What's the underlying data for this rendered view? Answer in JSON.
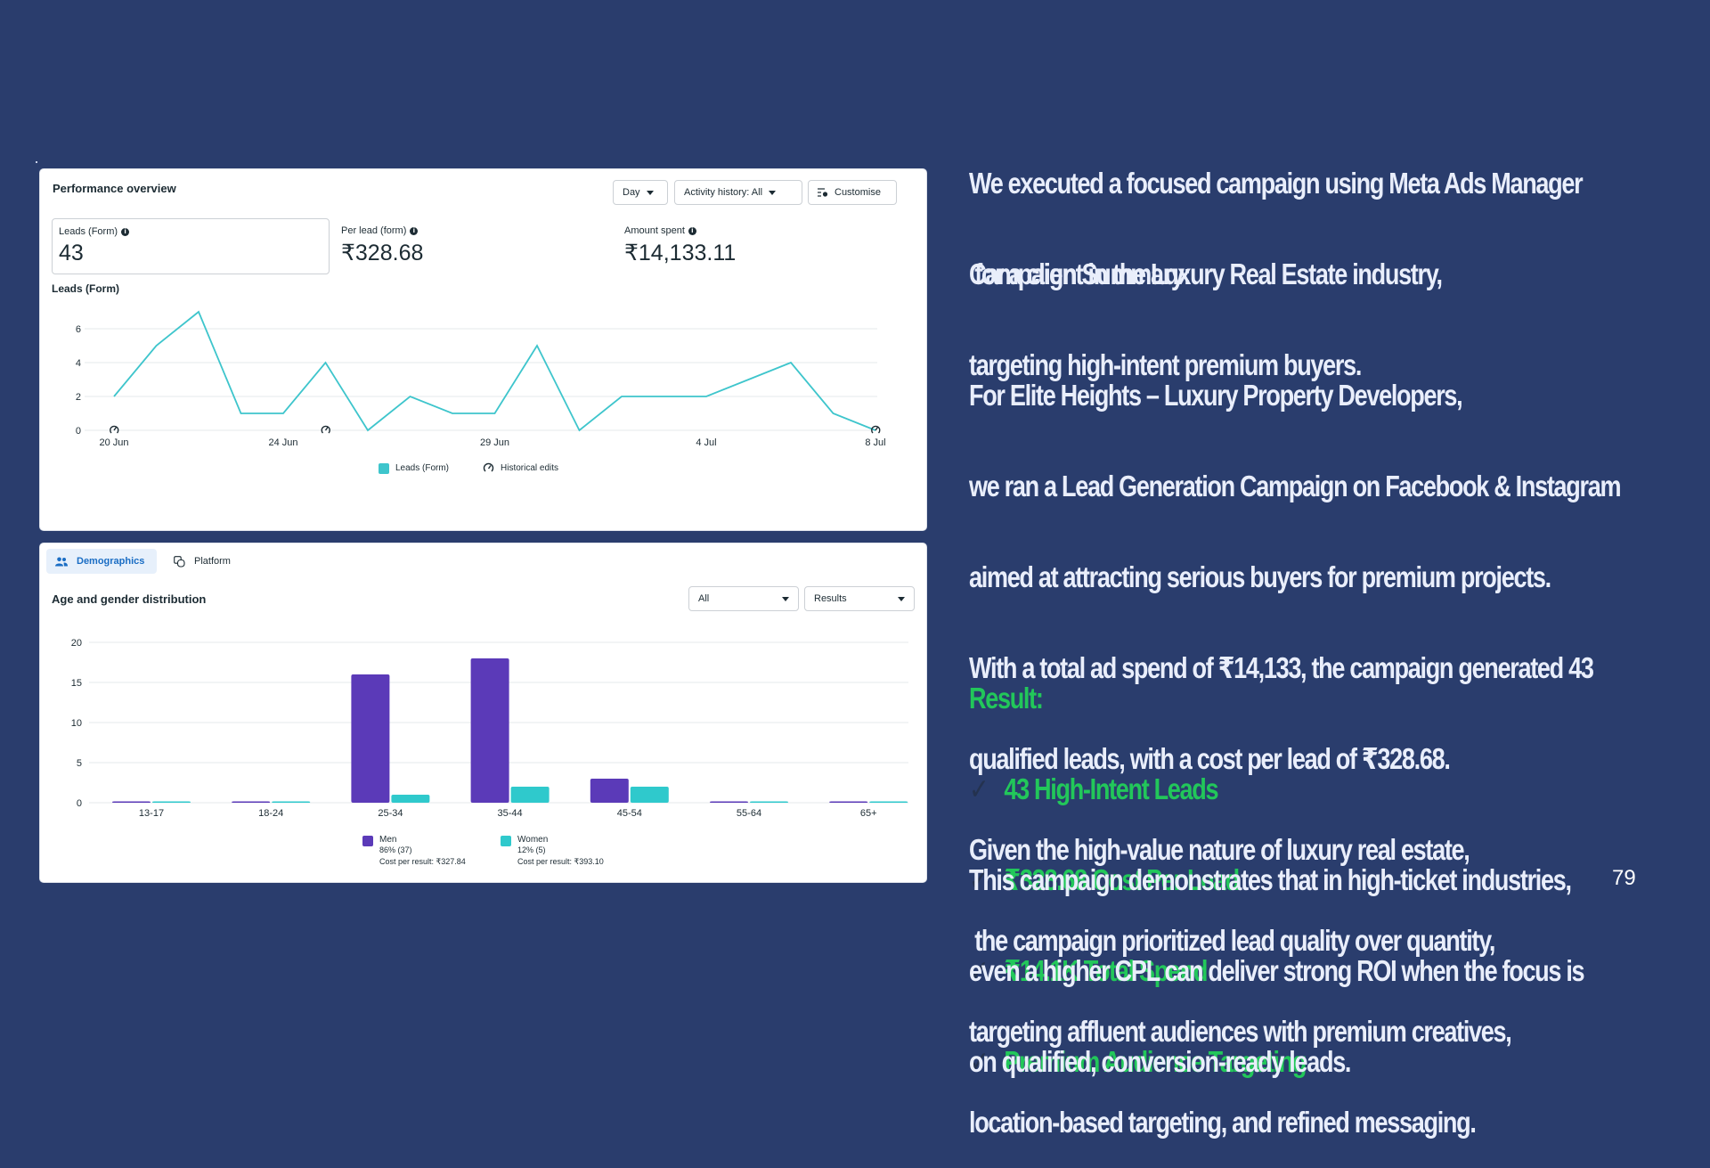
{
  "performance_overview": {
    "title": "Performance overview",
    "controls": {
      "day_label": "Day",
      "activity_label": "Activity history: All",
      "customise_label": "Customise"
    },
    "metrics": [
      {
        "label": "Leads (Form)",
        "value": "43"
      },
      {
        "label": "Per lead (form)",
        "value": "₹328.68"
      },
      {
        "label": "Amount spent",
        "value": "₹14,133.11"
      }
    ],
    "chart_title": "Leads (Form)",
    "legend": {
      "series_label": "Leads (Form)",
      "edits_label": "Historical edits"
    }
  },
  "demographics": {
    "tabs": [
      {
        "label": "Demographics",
        "active": true
      },
      {
        "label": "Platform",
        "active": false
      }
    ],
    "title": "Age and gender distribution",
    "filter_all": "All",
    "filter_results": "Results",
    "legend": [
      {
        "name": "Men",
        "share": "86% (37)",
        "cost": "Cost per result: ₹327.84",
        "color": "#5b3ab8"
      },
      {
        "name": "Women",
        "share": "12% (5)",
        "cost": "Cost per result: ₹393.10",
        "color": "#2fc9cc"
      }
    ]
  },
  "chart_data": [
    {
      "type": "line",
      "title": "Leads (Form)",
      "xlabel": "",
      "ylabel": "",
      "x": [
        "20 Jun",
        "21 Jun",
        "22 Jun",
        "23 Jun",
        "24 Jun",
        "25 Jun",
        "26 Jun",
        "27 Jun",
        "28 Jun",
        "29 Jun",
        "30 Jun",
        "1 Jul",
        "2 Jul",
        "3 Jul",
        "4 Jul",
        "5 Jul",
        "6 Jul",
        "7 Jul",
        "8 Jul"
      ],
      "series": [
        {
          "name": "Leads (Form)",
          "values": [
            2,
            5,
            7,
            1,
            1,
            4,
            0,
            2,
            1,
            1,
            5,
            0,
            2,
            2,
            2,
            3,
            4,
            1,
            0
          ],
          "color": "#3ec5cc"
        }
      ],
      "x_tick_labels": [
        "20 Jun",
        "24 Jun",
        "29 Jun",
        "4 Jul",
        "8 Jul"
      ],
      "y_ticks": [
        0,
        2,
        4,
        6
      ],
      "ylim": [
        0,
        7
      ],
      "grid": true,
      "annotations": [
        {
          "x": "20 Jun",
          "label": "Historical edits"
        },
        {
          "x": "25 Jun",
          "label": "Historical edits"
        },
        {
          "x": "8 Jul",
          "label": "Historical edits"
        }
      ],
      "legend_position": "bottom"
    },
    {
      "type": "bar",
      "title": "Age and gender distribution",
      "xlabel": "",
      "ylabel": "",
      "categories": [
        "13-17",
        "18-24",
        "25-34",
        "35-44",
        "45-54",
        "55-64",
        "65+"
      ],
      "series": [
        {
          "name": "Men",
          "values": [
            0,
            0,
            16,
            18,
            3,
            0,
            0
          ],
          "color": "#5b3ab8"
        },
        {
          "name": "Women",
          "values": [
            0,
            0,
            1,
            2,
            2,
            0,
            0
          ],
          "color": "#2fc9cc"
        }
      ],
      "y_ticks": [
        0,
        5,
        10,
        15,
        20
      ],
      "ylim": [
        0,
        20
      ],
      "grid": true,
      "legend_position": "bottom"
    }
  ],
  "narrative": {
    "intro": [
      "We executed a focused campaign using Meta Ads Manager",
      " for a client in the Luxury Real Estate industry,",
      "targeting high-intent premium buyers."
    ],
    "summary_heading": "Campaign Summary:",
    "summary": [
      "For Elite Heights – Luxury Property Developers,",
      "we ran a Lead Generation Campaign on Facebook & Instagram",
      "aimed at attracting serious buyers for premium projects.",
      "With a total ad spend of ₹14,133, the campaign generated 43",
      "qualified leads, with a cost per lead of ₹328.68.",
      "Given the high-value nature of luxury real estate,",
      " the campaign prioritized lead quality over quantity,",
      "targeting affluent audiences with premium creatives,",
      "location-based targeting, and refined messaging."
    ],
    "result_heading": "Result:",
    "results": [
      "43 High-Intent Leads",
      "₹328.68 Cost Per Lead",
      "₹14.1K Total Spend",
      "Premium Audience Targeting"
    ],
    "check_icon": "✓",
    "conclusion": [
      "This campaign demonstrates that in high-ticket industries,",
      "even a higher CPL can deliver strong ROI when the focus is",
      "on qualified, conversion-ready leads."
    ],
    "page_number": "79"
  }
}
